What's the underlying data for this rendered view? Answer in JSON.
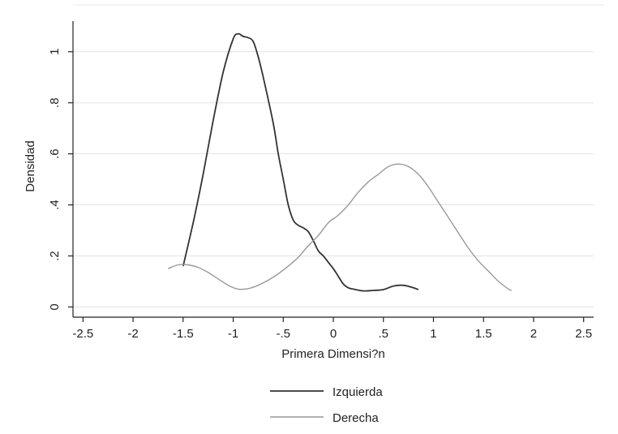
{
  "chart_data": {
    "type": "line",
    "title": "",
    "xlabel": "Primera Dimensi?n",
    "ylabel": "Densidad",
    "xlim": [
      -2.6,
      2.6
    ],
    "ylim": [
      -0.04,
      1.12
    ],
    "x_ticks": [
      -2.5,
      -2,
      -1.5,
      -1,
      -0.5,
      0,
      0.5,
      1,
      1.5,
      2,
      2.5
    ],
    "x_tick_labels": [
      "-2.5",
      "-2",
      "-1.5",
      "-1",
      "-.5",
      "0",
      ".5",
      "1",
      "1.5",
      "2",
      "2.5"
    ],
    "y_ticks": [
      0,
      0.2,
      0.4,
      0.6,
      0.8,
      1
    ],
    "y_tick_labels": [
      "0",
      ".2",
      ".4",
      ".6",
      ".8",
      "1"
    ],
    "grid": true,
    "legend_position": "bottom",
    "series": [
      {
        "name": "Izquierda",
        "color": "#333333",
        "x": [
          -1.5,
          -1.4,
          -1.3,
          -1.2,
          -1.1,
          -1.0,
          -0.95,
          -0.9,
          -0.85,
          -0.8,
          -0.75,
          -0.7,
          -0.6,
          -0.55,
          -0.5,
          -0.45,
          -0.4,
          -0.35,
          -0.3,
          -0.25,
          -0.2,
          -0.15,
          -0.1,
          -0.05,
          0.0,
          0.05,
          0.1,
          0.15,
          0.2,
          0.3,
          0.4,
          0.5,
          0.6,
          0.7,
          0.8,
          0.85
        ],
        "y": [
          0.16,
          0.33,
          0.52,
          0.73,
          0.92,
          1.05,
          1.07,
          1.06,
          1.055,
          1.04,
          0.98,
          0.9,
          0.72,
          0.6,
          0.5,
          0.4,
          0.34,
          0.32,
          0.31,
          0.295,
          0.26,
          0.22,
          0.2,
          0.175,
          0.15,
          0.12,
          0.09,
          0.075,
          0.07,
          0.063,
          0.065,
          0.068,
          0.082,
          0.085,
          0.075,
          0.068
        ]
      },
      {
        "name": "Derecha",
        "color": "#999999",
        "x": [
          -1.65,
          -1.55,
          -1.45,
          -1.35,
          -1.25,
          -1.15,
          -1.05,
          -0.95,
          -0.85,
          -0.75,
          -0.65,
          -0.55,
          -0.45,
          -0.35,
          -0.25,
          -0.15,
          -0.05,
          0.05,
          0.15,
          0.25,
          0.35,
          0.45,
          0.55,
          0.65,
          0.75,
          0.85,
          0.95,
          1.05,
          1.15,
          1.25,
          1.35,
          1.45,
          1.55,
          1.65,
          1.75,
          1.78
        ],
        "y": [
          0.15,
          0.165,
          0.165,
          0.155,
          0.135,
          0.11,
          0.085,
          0.07,
          0.072,
          0.085,
          0.105,
          0.13,
          0.16,
          0.195,
          0.24,
          0.28,
          0.33,
          0.36,
          0.4,
          0.45,
          0.49,
          0.52,
          0.55,
          0.56,
          0.55,
          0.52,
          0.47,
          0.41,
          0.35,
          0.29,
          0.23,
          0.18,
          0.14,
          0.1,
          0.07,
          0.065
        ]
      }
    ]
  }
}
